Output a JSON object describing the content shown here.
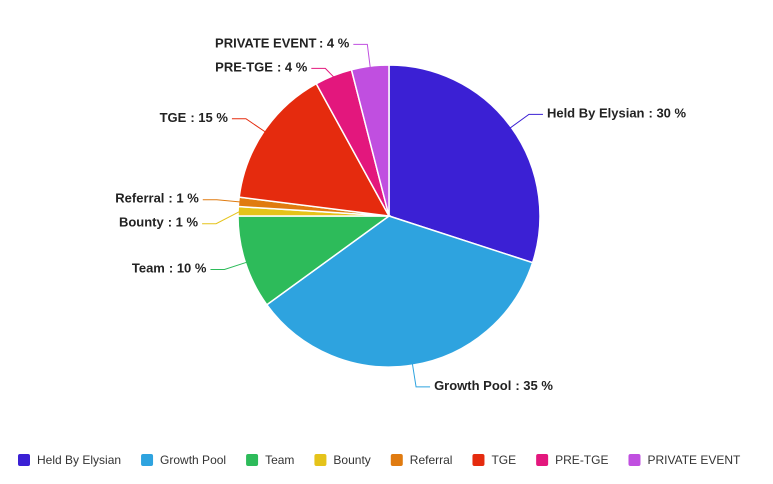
{
  "chart_data": {
    "type": "pie",
    "categories": [
      "Held By Elysian",
      "Growth Pool",
      "Team",
      "Bounty",
      "Referral",
      "TGE",
      "PRE-TGE",
      "PRIVATE EVENT"
    ],
    "values": [
      30,
      35,
      10,
      1,
      1,
      15,
      4,
      4
    ],
    "value_labels": [
      ": 30 %",
      ": 35 %",
      ": 10 %",
      ": 1 %",
      ": 1 %",
      ": 15 %",
      ": 4 %",
      ": 4 %"
    ],
    "colors": [
      "#3b20d4",
      "#2ea3df",
      "#2dbb5a",
      "#e5c31a",
      "#e07b10",
      "#e52b0e",
      "#e3177d",
      "#c04fe0"
    ],
    "legend": "bottom"
  }
}
